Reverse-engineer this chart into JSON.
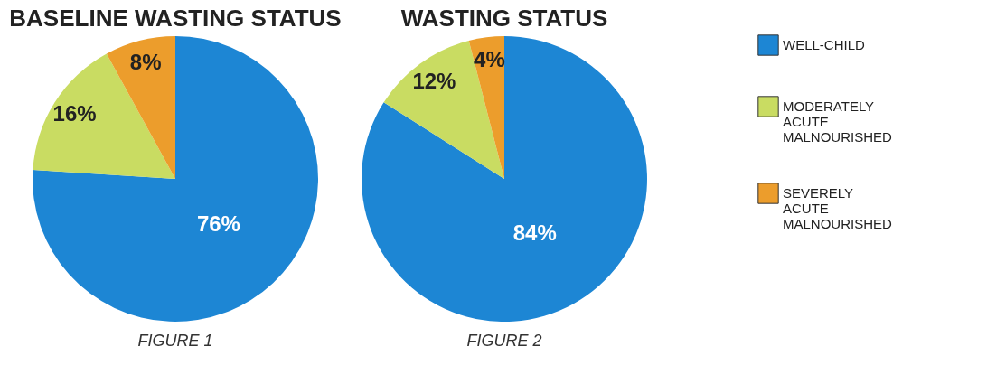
{
  "chart_data": [
    {
      "type": "pie",
      "title": "BASELINE WASTING STATUS",
      "categories": [
        null,
        null,
        null
      ],
      "values": [
        76,
        16,
        8
      ],
      "value_labels": [
        "76%",
        "16%",
        "8%"
      ],
      "colors": [
        "#1d86d4",
        "#c9dc62",
        "#ec9d2c"
      ],
      "annotations": [
        "FIGURE 1"
      ],
      "legend": false
    },
    {
      "type": "pie",
      "title": "WASTING STATUS",
      "categories": [
        "WELL-CHILD",
        "MODERATELY ACUTE MALNOURISHED",
        "SEVERELY ACUTE MALNOURISHED"
      ],
      "values": [
        84,
        12,
        4
      ],
      "value_labels": [
        "84%",
        "12%",
        "4%"
      ],
      "colors": [
        "#1d86d4",
        "#c9dc62",
        "#ec9d2c"
      ],
      "annotations": [
        "FIGURE 2"
      ],
      "legend": "right"
    }
  ]
}
